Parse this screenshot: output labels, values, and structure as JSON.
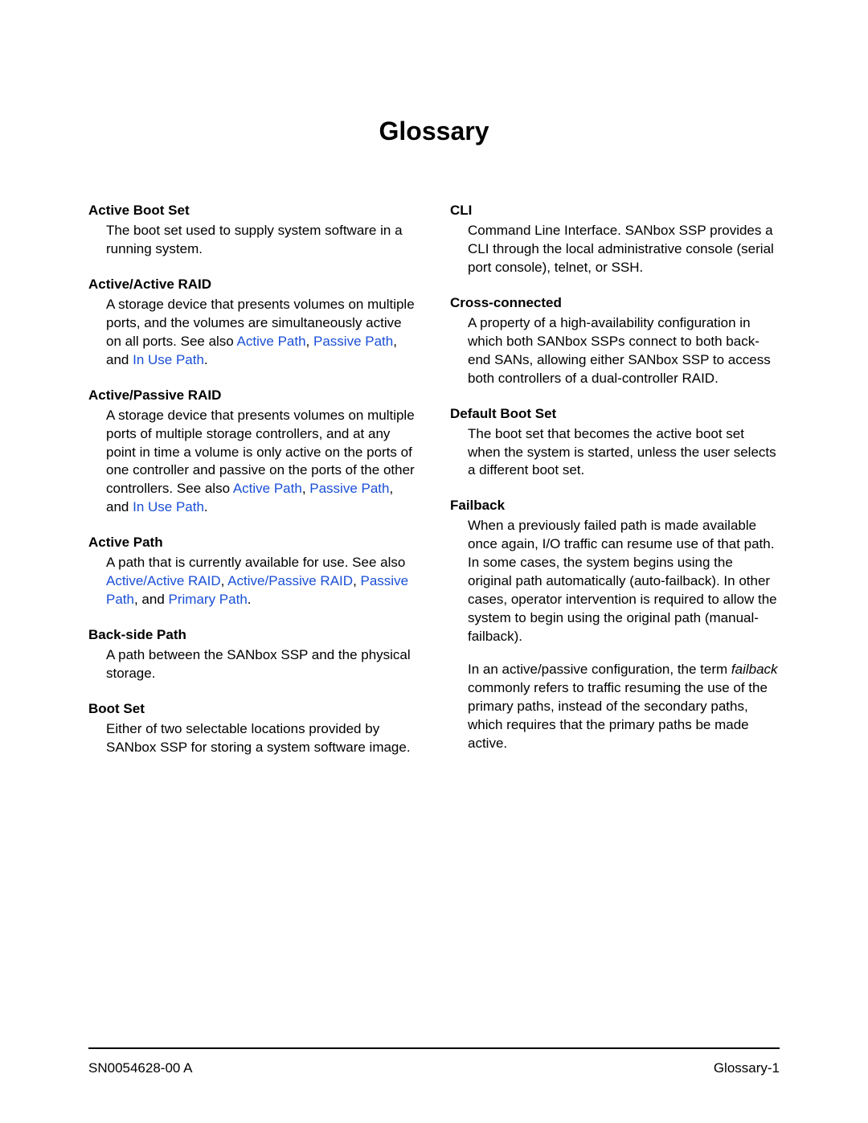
{
  "title": "Glossary",
  "link_color": "#1a4fd6",
  "columns": {
    "left": [
      {
        "term": "Active Boot Set",
        "def": [
          {
            "segments": [
              {
                "t": "The boot set used to supply system software in a running system."
              }
            ]
          }
        ]
      },
      {
        "term": "Active/Active RAID",
        "def": [
          {
            "segments": [
              {
                "t": "A storage device that presents volumes on multiple ports, and the volumes are simultaneously active on all ports. See also "
              },
              {
                "t": "Active Path",
                "link": true
              },
              {
                "t": ", "
              },
              {
                "t": "Passive Path",
                "link": true
              },
              {
                "t": ", and "
              },
              {
                "t": "In Use Path",
                "link": true
              },
              {
                "t": "."
              }
            ]
          }
        ]
      },
      {
        "term": "Active/Passive RAID",
        "def": [
          {
            "segments": [
              {
                "t": "A storage device that presents volumes on multiple ports of multiple storage controllers, and at any point in time a volume is only active on the ports of one controller and passive on the ports of the other controllers. See also "
              },
              {
                "t": "Active Path",
                "link": true
              },
              {
                "t": ", "
              },
              {
                "t": "Passive Path",
                "link": true
              },
              {
                "t": ", and "
              },
              {
                "t": "In Use Path",
                "link": true
              },
              {
                "t": "."
              }
            ]
          }
        ]
      },
      {
        "term": "Active Path",
        "def": [
          {
            "segments": [
              {
                "t": "A path that is currently available for use. See also "
              },
              {
                "t": "Active/Active RAID",
                "link": true
              },
              {
                "t": ", "
              },
              {
                "t": "Active/Passive RAID",
                "link": true
              },
              {
                "t": ", "
              },
              {
                "t": "Passive Path",
                "link": true
              },
              {
                "t": ", and "
              },
              {
                "t": "Primary Path",
                "link": true
              },
              {
                "t": "."
              }
            ]
          }
        ]
      },
      {
        "term": "Back-side Path",
        "def": [
          {
            "segments": [
              {
                "t": "A path between the SANbox SSP and the physical storage."
              }
            ]
          }
        ]
      },
      {
        "term": "Boot Set",
        "def": [
          {
            "segments": [
              {
                "t": "Either of two selectable locations provided by SANbox SSP for storing a system software image."
              }
            ]
          }
        ]
      }
    ],
    "right": [
      {
        "term": "CLI",
        "def": [
          {
            "segments": [
              {
                "t": "Command Line Interface. SANbox SSP provides a CLI through the local administrative console (serial port console), telnet, or SSH."
              }
            ]
          }
        ]
      },
      {
        "term": "Cross-connected",
        "def": [
          {
            "segments": [
              {
                "t": "A property of a high-availability configuration in which both SANbox SSPs connect to both back-end SANs, allowing either SANbox SSP to access both controllers of a dual-controller RAID."
              }
            ]
          }
        ]
      },
      {
        "term": "Default Boot Set",
        "def": [
          {
            "segments": [
              {
                "t": "The boot set that becomes the active boot set when the system is started, unless the user selects a different boot set."
              }
            ]
          }
        ]
      },
      {
        "term": "Failback",
        "def": [
          {
            "segments": [
              {
                "t": "When a previously failed path is made available once again, I/O traffic can resume use of that path. In some cases, the system begins using the original path automatically (auto-failback). In other cases, operator intervention is required to allow the system to begin using the original path (manual-failback)."
              }
            ]
          },
          {
            "segments": [
              {
                "t": "In an active/passive configuration, the term "
              },
              {
                "t": "failback",
                "ital": true
              },
              {
                "t": " commonly refers to traffic resuming the use of the primary paths, instead of the secondary paths, which requires that the primary paths be made active."
              }
            ]
          }
        ]
      }
    ]
  },
  "footer": {
    "left": "SN0054628-00  A",
    "right": "Glossary-1"
  }
}
